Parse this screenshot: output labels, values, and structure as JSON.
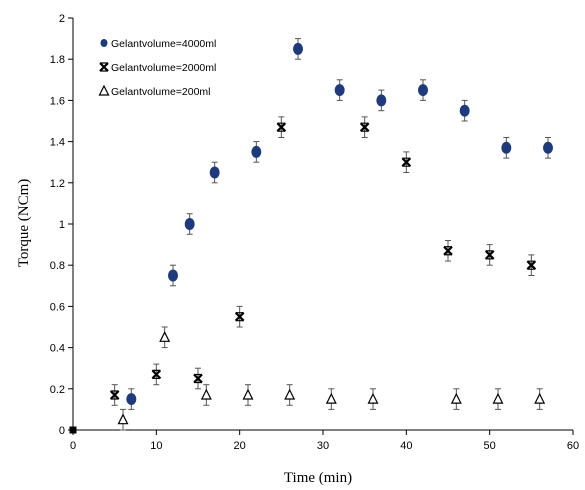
{
  "chart_data": {
    "type": "scatter",
    "xlabel": "Time (min)",
    "ylabel": "Torque (NCm)",
    "xlim": [
      0,
      60
    ],
    "ylim": [
      0,
      2
    ],
    "xticks": [
      "0",
      "10",
      "20",
      "30",
      "40",
      "50",
      "60"
    ],
    "yticks": [
      "0",
      "0.2",
      "0.4",
      "0.6",
      "0.8",
      "1",
      "1.2",
      "1.4",
      "1.6",
      "1.8",
      "2"
    ],
    "grid": false,
    "legend_position": "top-left",
    "error_bar": 0.05,
    "series": [
      {
        "name": "Gelantvolume=4000ml",
        "marker": "circle",
        "color": "#1f3a7a",
        "x": [
          0,
          7,
          12,
          14,
          17,
          22,
          27,
          32,
          37,
          42,
          47,
          52,
          57
        ],
        "y": [
          0,
          0.15,
          0.75,
          1.0,
          1.25,
          1.35,
          1.85,
          1.65,
          1.6,
          1.65,
          1.55,
          1.37,
          1.37
        ]
      },
      {
        "name": "Gelantvolume=2000ml",
        "marker": "x",
        "color": "#000000",
        "x": [
          0,
          5,
          10,
          15,
          20,
          25,
          35,
          40,
          45,
          50,
          55
        ],
        "y": [
          0,
          0.17,
          0.27,
          0.25,
          0.55,
          1.47,
          1.47,
          1.3,
          0.87,
          0.85,
          0.8
        ]
      },
      {
        "name": "Gelantvolume=200ml",
        "marker": "triangle",
        "color": "#000000",
        "x": [
          0,
          6,
          11,
          16,
          21,
          26,
          31,
          36,
          46,
          51,
          56
        ],
        "y": [
          0,
          0.05,
          0.45,
          0.17,
          0.17,
          0.17,
          0.15,
          0.15,
          0.15,
          0.15,
          0.15
        ]
      }
    ]
  }
}
